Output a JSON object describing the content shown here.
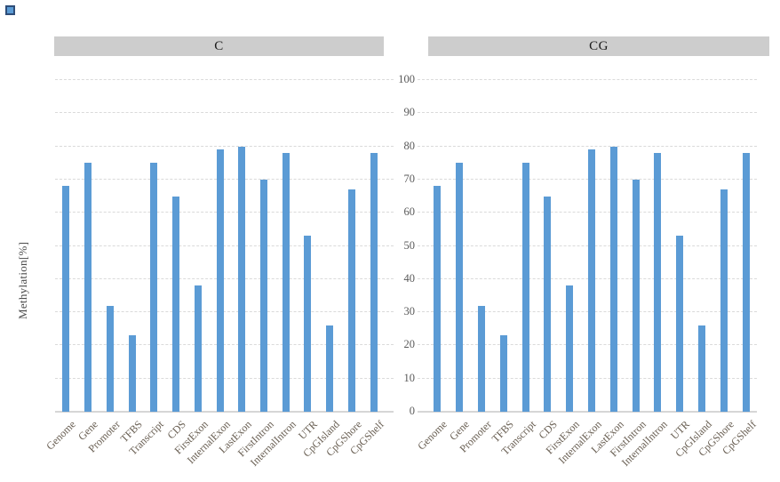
{
  "axis": {
    "y_title": "Methylation[%]",
    "y_ticks": [
      0,
      10,
      20,
      30,
      40,
      50,
      60,
      70,
      80,
      90,
      100
    ],
    "y_min": 0,
    "y_max": 100
  },
  "chart_data": [
    {
      "type": "bar",
      "title": "C",
      "categories": [
        "Genome",
        "Gene",
        "Promoter",
        "TFBS",
        "Transcript",
        "CDS",
        "FirstExon",
        "InternalExon",
        "LastExon",
        "FirstIntron",
        "InternalIntron",
        "UTR",
        "CpGIsland",
        "CpGShore",
        "CpGShelf"
      ],
      "values": [
        68,
        75,
        32,
        23,
        75,
        65,
        38,
        79,
        80,
        70,
        78,
        53,
        26,
        67,
        78
      ],
      "ylabel": "Methylation[%]",
      "ylim": [
        0,
        100
      ],
      "grid": "horizontal-dashed",
      "legend": "none",
      "bar_color": "#5b9bd5"
    },
    {
      "type": "bar",
      "title": "CG",
      "categories": [
        "Genome",
        "Gene",
        "Promoter",
        "TFBS",
        "Transcript",
        "CDS",
        "FirstExon",
        "InternalExon",
        "LastExon",
        "FirstIntron",
        "InternalIntron",
        "UTR",
        "CpGIsland",
        "CpGShore",
        "CpGShelf"
      ],
      "values": [
        68,
        75,
        32,
        23,
        75,
        65,
        38,
        79,
        80,
        70,
        78,
        53,
        26,
        67,
        78
      ],
      "ylabel": "Methylation[%]",
      "ylim": [
        0,
        100
      ],
      "grid": "horizontal-dashed",
      "legend": "none",
      "bar_color": "#5b9bd5"
    }
  ],
  "colors": {
    "bar": "#5b9bd5",
    "header_bg": "#cdcdcd",
    "gridline": "#dadada",
    "axis_line": "#d6d6d6",
    "y_tick_text": "#595959",
    "x_tick_text": "#6a6054",
    "title_text": "#1a1a1a",
    "marker_fill": "#5b9bd5",
    "marker_border": "#2e4d78"
  }
}
